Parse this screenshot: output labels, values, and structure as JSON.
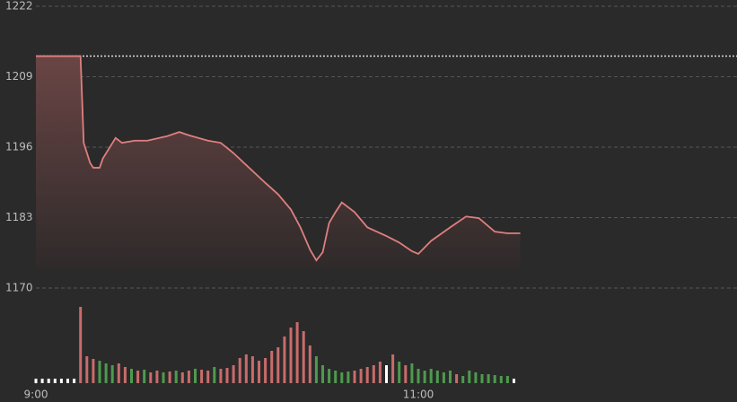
{
  "chart_data": {
    "type": "line",
    "x": [
      0,
      14,
      15,
      17,
      18,
      20,
      21,
      25,
      27,
      31,
      35,
      41,
      45,
      48,
      54,
      58,
      62,
      66,
      72,
      76,
      80,
      83,
      86,
      88,
      90,
      92,
      94,
      96,
      100,
      104,
      110,
      114,
      118,
      120,
      124,
      130,
      135,
      139,
      144,
      148,
      152
    ],
    "values": [
      1212.8,
      1212.8,
      1196.8,
      1193.1,
      1192.2,
      1192.2,
      1193.9,
      1197.7,
      1196.8,
      1197.2,
      1197.2,
      1198.0,
      1198.8,
      1198.2,
      1197.2,
      1196.8,
      1194.9,
      1192.7,
      1189.4,
      1187.3,
      1184.5,
      1181.2,
      1177.1,
      1175.1,
      1176.6,
      1182.0,
      1184.0,
      1185.8,
      1184.0,
      1181.2,
      1179.6,
      1178.4,
      1176.8,
      1176.3,
      1178.7,
      1181.2,
      1183.2,
      1182.9,
      1180.4,
      1180.1,
      1180.1
    ],
    "color": "#e07f7f",
    "reference": 1212.8,
    "xlim": [
      0,
      220
    ],
    "xticks": [
      {
        "value": 0,
        "label": "9:00"
      },
      {
        "value": 120,
        "label": "11:00"
      }
    ],
    "ylim": [
      1170,
      1222
    ],
    "yticks": [
      1170,
      1183,
      1196,
      1209,
      1222
    ],
    "grid": true,
    "volume": {
      "x": [
        0,
        2,
        4,
        6,
        8,
        10,
        12,
        14,
        16,
        18,
        20,
        22,
        24,
        26,
        28,
        30,
        32,
        34,
        36,
        38,
        40,
        42,
        44,
        46,
        48,
        50,
        52,
        54,
        56,
        58,
        60,
        62,
        64,
        66,
        68,
        70,
        72,
        74,
        76,
        78,
        80,
        82,
        84,
        86,
        88,
        90,
        92,
        94,
        96,
        98,
        100,
        102,
        104,
        106,
        108,
        110,
        112,
        114,
        116,
        118,
        120,
        122,
        124,
        126,
        128,
        130,
        132,
        134,
        136,
        138,
        140,
        142,
        144,
        146,
        148,
        150
      ],
      "values": [
        5,
        5,
        5,
        5,
        5,
        5,
        5,
        85,
        30,
        27,
        25,
        22,
        20,
        22,
        18,
        16,
        14,
        15,
        12,
        14,
        12,
        13,
        14,
        12,
        14,
        16,
        15,
        14,
        18,
        16,
        17,
        20,
        28,
        32,
        30,
        25,
        28,
        36,
        40,
        52,
        62,
        68,
        58,
        42,
        30,
        20,
        16,
        14,
        12,
        13,
        14,
        16,
        18,
        20,
        24,
        20,
        32,
        24,
        20,
        22,
        16,
        14,
        16,
        14,
        12,
        14,
        10,
        8,
        14,
        12,
        10,
        10,
        9,
        8,
        8,
        5
      ],
      "colors": [
        "#ffffff",
        "#ffffff",
        "#ffffff",
        "#ffffff",
        "#ffffff",
        "#ffffff",
        "#ffffff",
        "#c96b6b",
        "#c96b6b",
        "#c96b6b",
        "#4e9a4e",
        "#4e9a4e",
        "#4e9a4e",
        "#c96b6b",
        "#c96b6b",
        "#4e9a4e",
        "#c96b6b",
        "#4e9a4e",
        "#c96b6b",
        "#c96b6b",
        "#4e9a4e",
        "#c96b6b",
        "#4e9a4e",
        "#c96b6b",
        "#c96b6b",
        "#4e9a4e",
        "#c96b6b",
        "#c96b6b",
        "#4e9a4e",
        "#c96b6b",
        "#c96b6b",
        "#c96b6b",
        "#c96b6b",
        "#c96b6b",
        "#c96b6b",
        "#c96b6b",
        "#c96b6b",
        "#c96b6b",
        "#c96b6b",
        "#c96b6b",
        "#c96b6b",
        "#c96b6b",
        "#c96b6b",
        "#c96b6b",
        "#4e9a4e",
        "#4e9a4e",
        "#4e9a4e",
        "#4e9a4e",
        "#4e9a4e",
        "#4e9a4e",
        "#c96b6b",
        "#c96b6b",
        "#c96b6b",
        "#c96b6b",
        "#c96b6b",
        "#ffffff",
        "#c96b6b",
        "#4e9a4e",
        "#c96b6b",
        "#4e9a4e",
        "#4e9a4e",
        "#4e9a4e",
        "#4e9a4e",
        "#4e9a4e",
        "#4e9a4e",
        "#4e9a4e",
        "#c96b6b",
        "#4e9a4e",
        "#4e9a4e",
        "#4e9a4e",
        "#4e9a4e",
        "#4e9a4e",
        "#4e9a4e",
        "#4e9a4e",
        "#4e9a4e",
        "#ffffff"
      ],
      "ylim": [
        0,
        90
      ]
    }
  }
}
